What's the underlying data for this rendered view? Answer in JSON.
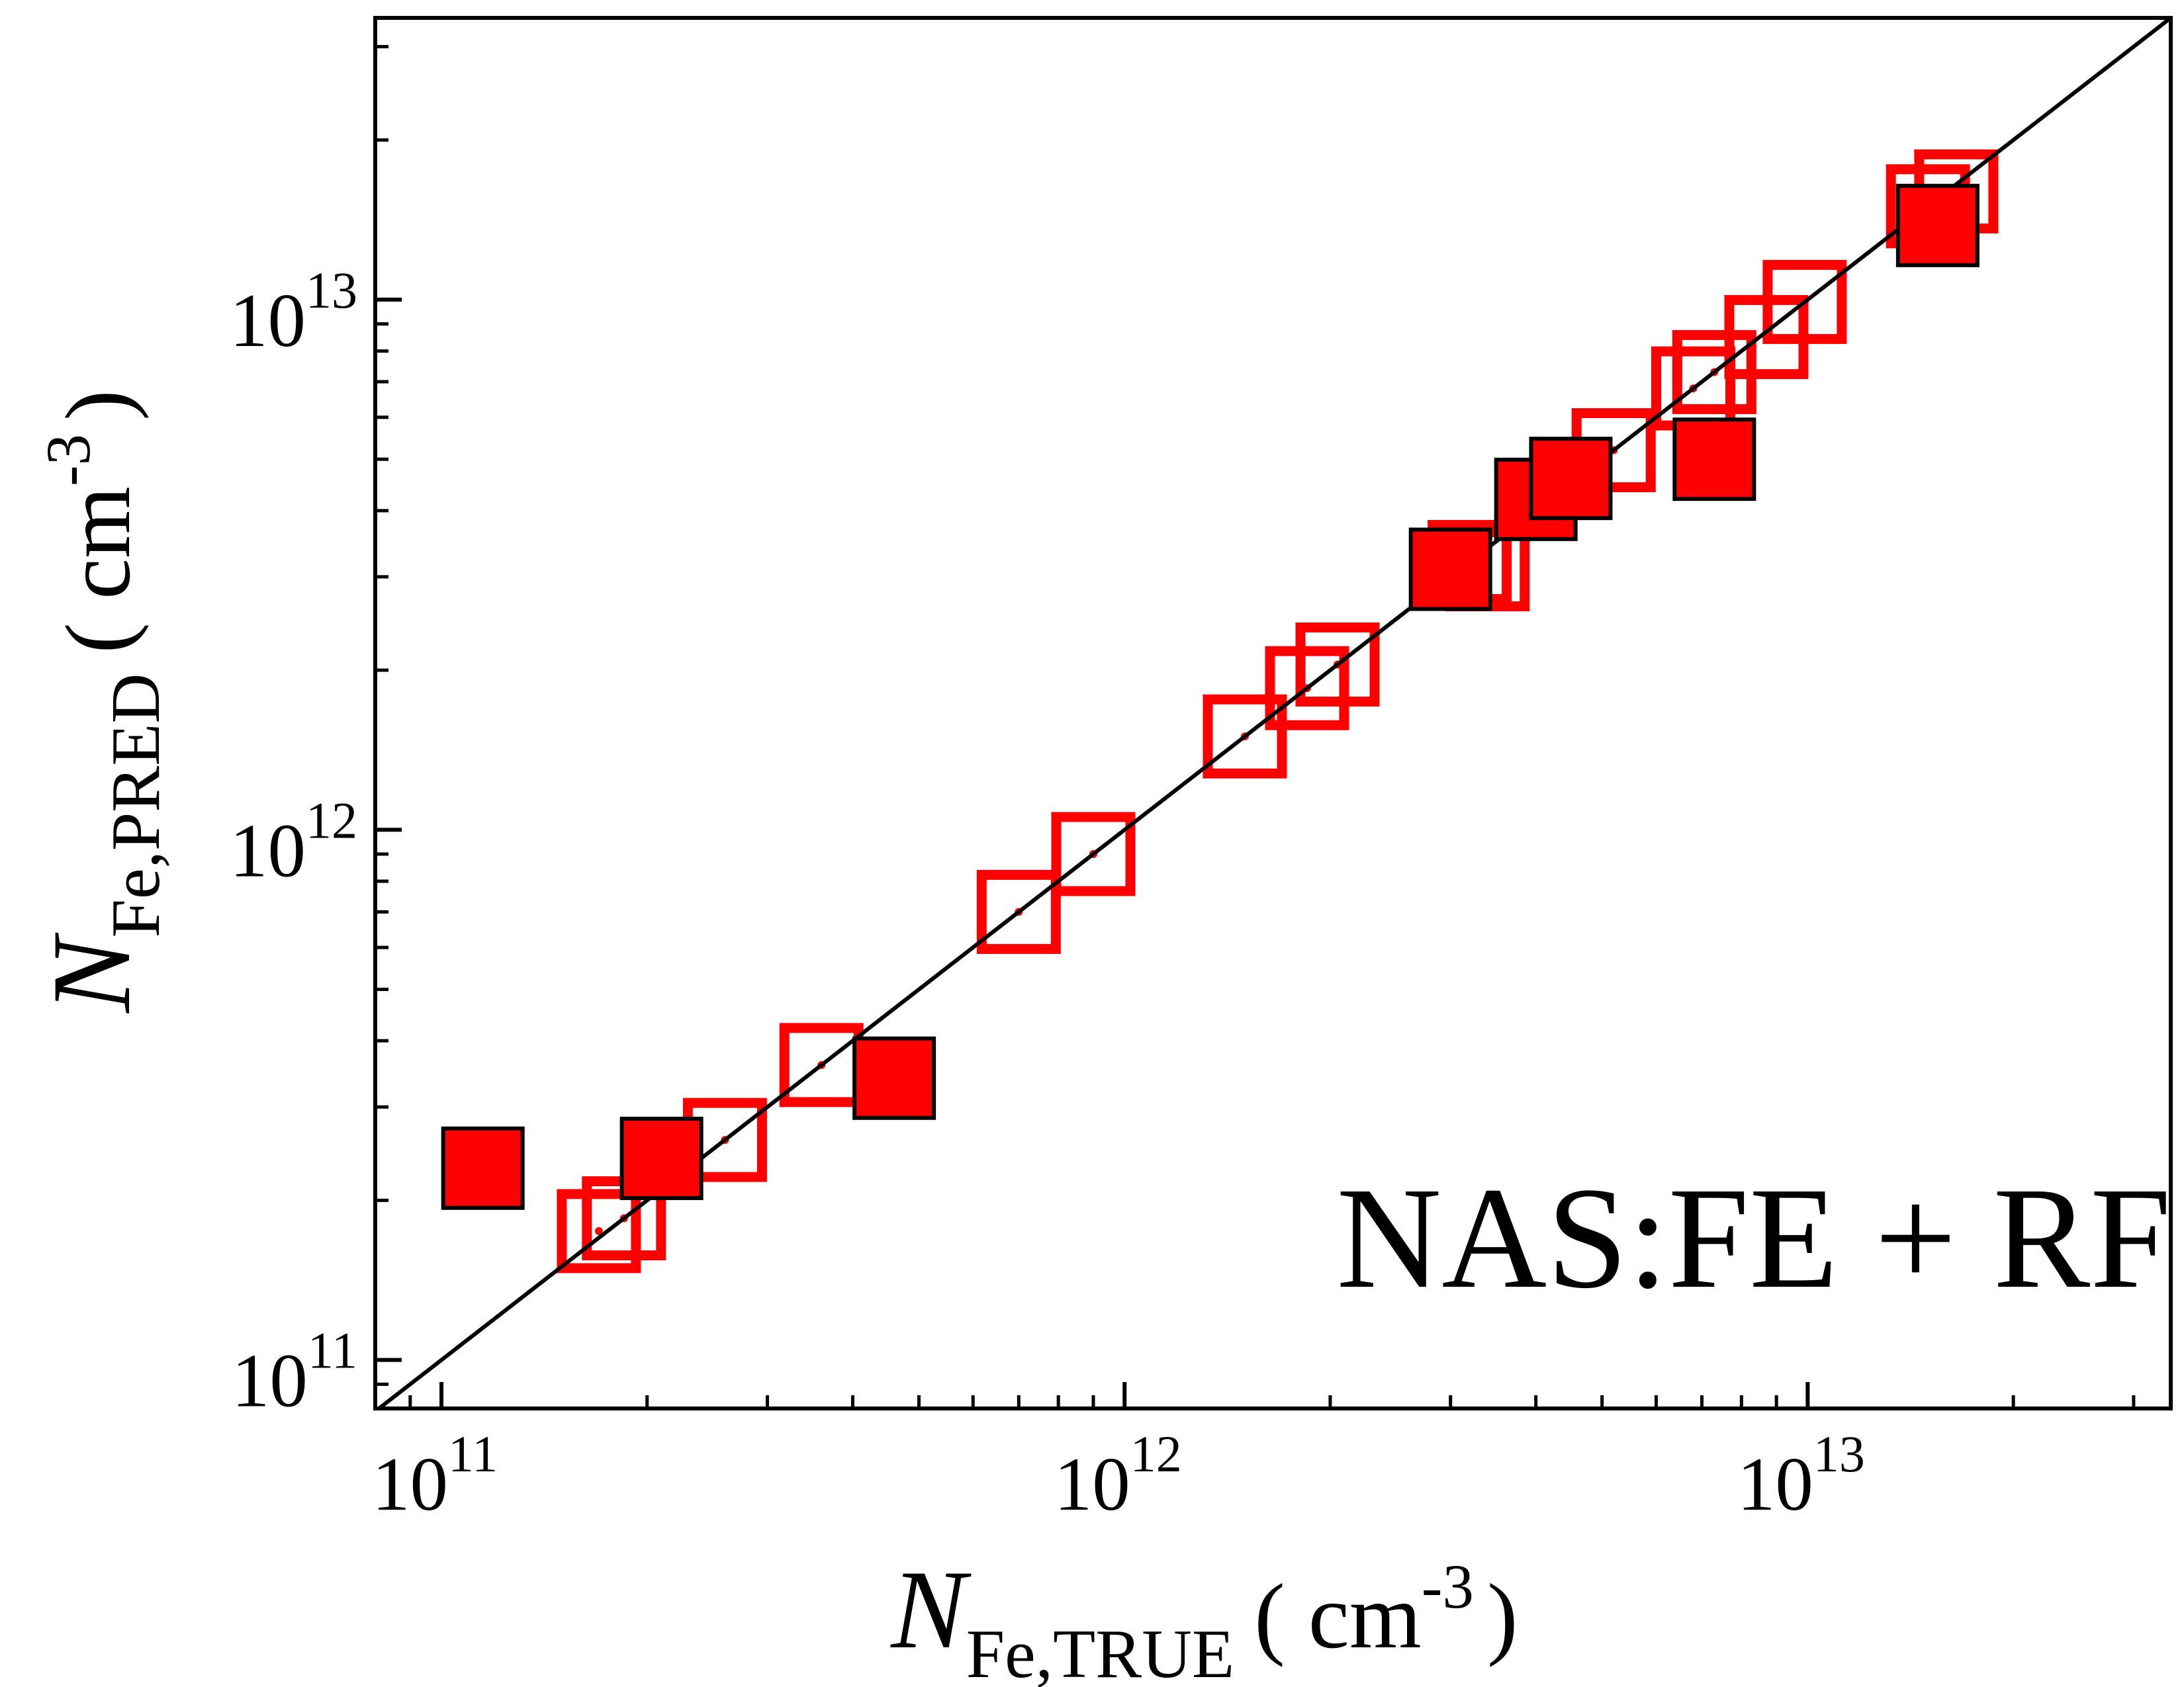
{
  "chart_data": {
    "type": "scatter",
    "title": "",
    "xlabel": {
      "symbol": "N",
      "subscript": "Fe,TRUE",
      "unit": "( cm",
      "unit_exp": "-3",
      "unit_close": ")"
    },
    "ylabel": {
      "symbol": "N",
      "subscript": "Fe,PRED",
      "unit": "( cm",
      "unit_exp": "-3",
      "unit_close": ")"
    },
    "xscale": "log",
    "yscale": "log",
    "xlim": [
      80000000000.0,
      34000000000000.0
    ],
    "ylim": [
      81000000000.0,
      34000000000000.0
    ],
    "grid": false,
    "major_ticks": [
      {
        "value": 100000000000.0,
        "base": "10",
        "exp": "11"
      },
      {
        "value": 1000000000000.0,
        "base": "10",
        "exp": "12"
      },
      {
        "value": 10000000000000.0,
        "base": "10",
        "exp": "13"
      }
    ],
    "annotation": "NAS:FE + RF",
    "reference_line": "y = x",
    "colors": {
      "fill": "#ff0000",
      "edge_filled": "#000000",
      "edge_open": "#ff0000",
      "line": "#000000"
    },
    "series": [
      {
        "marker": "open-square",
        "points": [
          [
            170000000000.0,
            175000000000.0
          ],
          [
            185000000000.0,
            185000000000.0
          ],
          [
            260000000000.0,
            260000000000.0
          ],
          [
            360000000000.0,
            360000000000.0
          ],
          [
            700000000000.0,
            700000000000.0
          ],
          [
            900000000000.0,
            900000000000.0
          ],
          [
            1500000000000.0,
            1500000000000.0
          ],
          [
            1850000000000.0,
            1850000000000.0
          ],
          [
            2050000000000.0,
            2050000000000.0
          ],
          [
            3200000000000.0,
            3200000000000.0
          ],
          [
            3400000000000.0,
            3100000000000.0
          ],
          [
            5200000000000.0,
            5200000000000.0
          ],
          [
            6800000000000.0,
            6800000000000.0
          ],
          [
            7300000000000.0,
            7300000000000.0
          ],
          [
            8700000000000.0,
            8500000000000.0
          ],
          [
            9900000000000.0,
            9900000000000.0
          ],
          [
            15000000000000.0,
            15000000000000.0
          ],
          [
            16500000000000.0,
            16000000000000.0
          ]
        ]
      },
      {
        "marker": "filled-square",
        "points": [
          [
            115000000000.0,
            230000000000.0
          ],
          [
            210000000000.0,
            240000000000.0
          ],
          [
            460000000000.0,
            340000000000.0
          ],
          [
            3000000000000.0,
            3100000000000.0
          ],
          [
            4000000000000.0,
            4200000000000.0
          ],
          [
            4500000000000.0,
            4600000000000.0
          ],
          [
            7300000000000.0,
            5000000000000.0
          ],
          [
            15500000000000.0,
            13800000000000.0
          ]
        ]
      }
    ]
  }
}
